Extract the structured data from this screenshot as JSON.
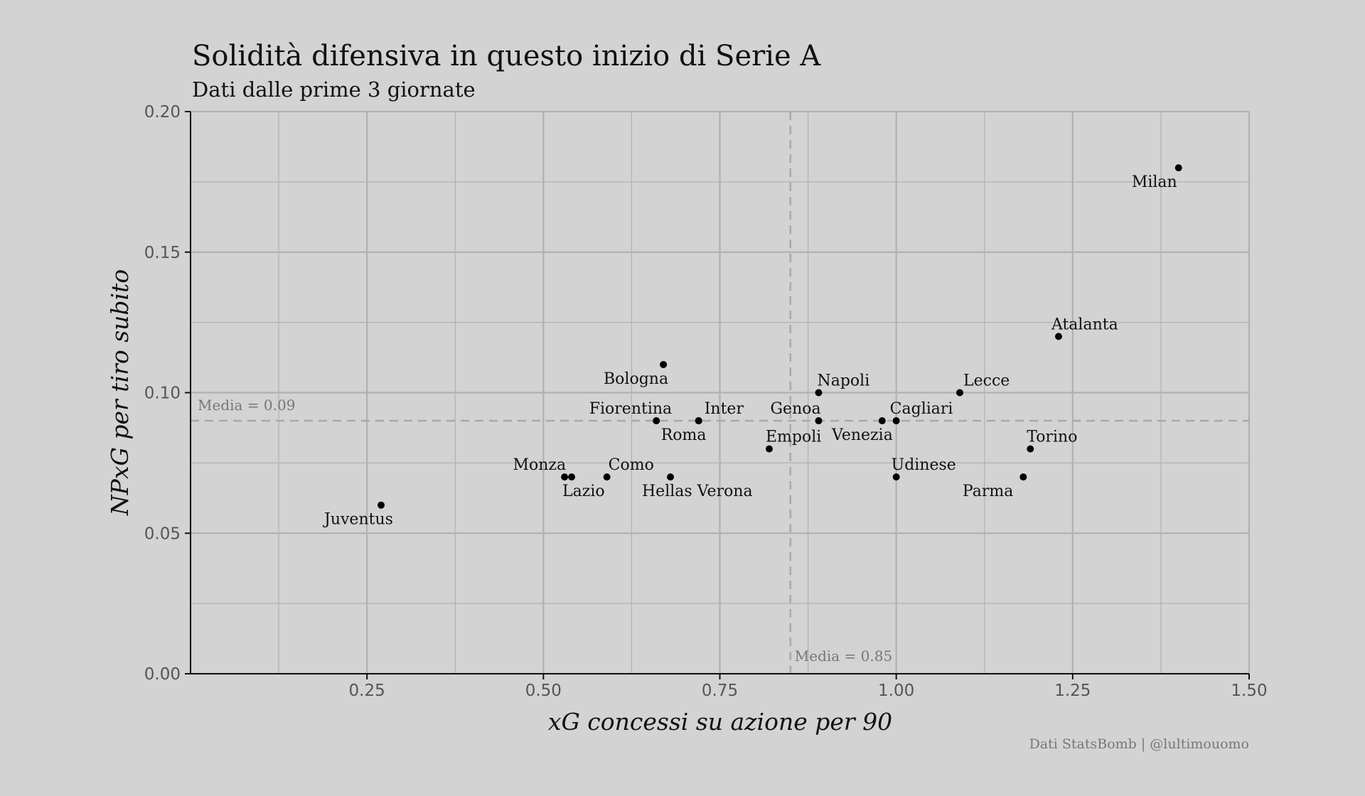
{
  "chart_data": {
    "type": "scatter",
    "title": "Solidità difensiva in questo inizio di Serie A",
    "subtitle": "Dati dalle prime 3 giornate",
    "xlabel": "xG concessi su azione per 90",
    "ylabel": "NPxG per tiro subito",
    "xlim": [
      0,
      1.5
    ],
    "ylim": [
      0,
      0.2
    ],
    "x_ticks": [
      "0.25",
      "0.50",
      "0.75",
      "1.00",
      "1.25",
      "1.50"
    ],
    "y_ticks": [
      "0.00",
      "0.05",
      "0.10",
      "0.15",
      "0.20"
    ],
    "grid": true,
    "points": [
      {
        "label": "Milan",
        "x": 1.4,
        "y": 0.18
      },
      {
        "label": "Atalanta",
        "x": 1.23,
        "y": 0.12
      },
      {
        "label": "Bologna",
        "x": 0.67,
        "y": 0.11
      },
      {
        "label": "Napoli",
        "x": 0.89,
        "y": 0.1
      },
      {
        "label": "Lecce",
        "x": 1.09,
        "y": 0.1
      },
      {
        "label": "Fiorentina",
        "x": 0.66,
        "y": 0.09
      },
      {
        "label": "Inter",
        "x": 0.72,
        "y": 0.09
      },
      {
        "label": "Roma",
        "x": 0.72,
        "y": 0.09
      },
      {
        "label": "Genoa",
        "x": 0.89,
        "y": 0.09
      },
      {
        "label": "Venezia",
        "x": 0.98,
        "y": 0.09
      },
      {
        "label": "Cagliari",
        "x": 1.0,
        "y": 0.09
      },
      {
        "label": "Empoli",
        "x": 0.82,
        "y": 0.08
      },
      {
        "label": "Torino",
        "x": 1.19,
        "y": 0.08
      },
      {
        "label": "Monza",
        "x": 0.53,
        "y": 0.07
      },
      {
        "label": "Lazio",
        "x": 0.54,
        "y": 0.07
      },
      {
        "label": "Como",
        "x": 0.59,
        "y": 0.07
      },
      {
        "label": "Hellas Verona",
        "x": 0.68,
        "y": 0.07
      },
      {
        "label": "Udinese",
        "x": 1.0,
        "y": 0.07
      },
      {
        "label": "Parma",
        "x": 1.18,
        "y": 0.07
      },
      {
        "label": "Juventus",
        "x": 0.27,
        "y": 0.06
      }
    ],
    "reference_lines": [
      {
        "axis": "y",
        "value": 0.09,
        "label": "Media = 0.09"
      },
      {
        "axis": "x",
        "value": 0.85,
        "label": "Media = 0.85"
      }
    ],
    "caption": "Dati StatsBomb | @lultimouomo"
  }
}
